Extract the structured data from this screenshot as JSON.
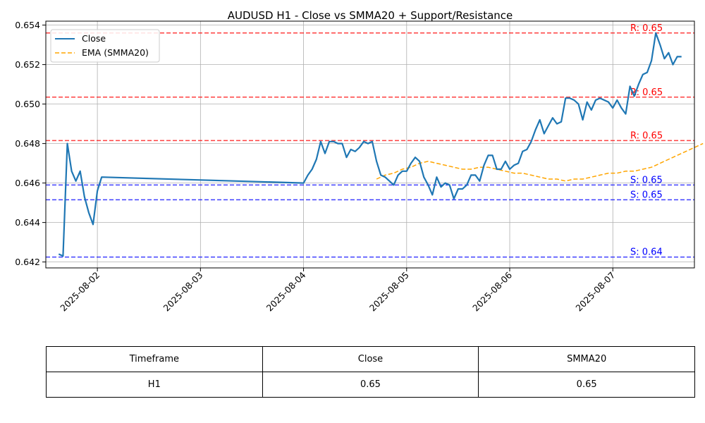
{
  "chart_data": {
    "type": "line",
    "title": "AUDUSD H1 - Close vs SMMA20 + Support/Resistance",
    "xlabel": "",
    "ylabel": "",
    "xlim": [
      "2025-08-01 12:00",
      "2025-08-07 19:00"
    ],
    "ylim": [
      0.6417,
      0.6542
    ],
    "x_ticks": [
      "2025-08-02",
      "2025-08-03",
      "2025-08-04",
      "2025-08-05",
      "2025-08-06",
      "2025-08-07"
    ],
    "y_ticks": [
      0.642,
      0.644,
      0.646,
      0.648,
      0.65,
      0.652,
      0.654
    ],
    "grid": true,
    "legend_position": "top-left",
    "colors": {
      "close": "#1f77b4",
      "smma": "#ffa500",
      "resistance": "#ff0000",
      "support": "#0000ff"
    },
    "series": [
      {
        "name": "Close",
        "style": "solid",
        "points": [
          [
            "2025-08-01 15:00",
            0.6424
          ],
          [
            "2025-08-01 16:00",
            0.6423
          ],
          [
            "2025-08-01 17:00",
            0.648
          ],
          [
            "2025-08-01 18:00",
            0.6466
          ],
          [
            "2025-08-01 19:00",
            0.6461
          ],
          [
            "2025-08-01 20:00",
            0.6466
          ],
          [
            "2025-08-01 21:00",
            0.6453
          ],
          [
            "2025-08-01 22:00",
            0.6445
          ],
          [
            "2025-08-01 23:00",
            0.6439
          ],
          [
            "2025-08-02 00:00",
            0.6456
          ],
          [
            "2025-08-02 01:00",
            0.6463
          ],
          [
            "2025-08-04 00:00",
            0.646
          ],
          [
            "2025-08-04 01:00",
            0.6464
          ],
          [
            "2025-08-04 02:00",
            0.6467
          ],
          [
            "2025-08-04 03:00",
            0.6472
          ],
          [
            "2025-08-04 04:00",
            0.6481
          ],
          [
            "2025-08-04 05:00",
            0.6475
          ],
          [
            "2025-08-04 06:00",
            0.6481
          ],
          [
            "2025-08-04 07:00",
            0.6481
          ],
          [
            "2025-08-04 08:00",
            0.648
          ],
          [
            "2025-08-04 09:00",
            0.648
          ],
          [
            "2025-08-04 10:00",
            0.6473
          ],
          [
            "2025-08-04 11:00",
            0.6477
          ],
          [
            "2025-08-04 12:00",
            0.6476
          ],
          [
            "2025-08-04 13:00",
            0.6478
          ],
          [
            "2025-08-04 14:00",
            0.6481
          ],
          [
            "2025-08-04 15:00",
            0.648
          ],
          [
            "2025-08-04 16:00",
            0.6481
          ],
          [
            "2025-08-04 17:00",
            0.6471
          ],
          [
            "2025-08-04 18:00",
            0.6464
          ],
          [
            "2025-08-04 19:00",
            0.6463
          ],
          [
            "2025-08-04 20:00",
            0.6461
          ],
          [
            "2025-08-04 21:00",
            0.6459
          ],
          [
            "2025-08-04 22:00",
            0.6464
          ],
          [
            "2025-08-04 23:00",
            0.6466
          ],
          [
            "2025-08-05 00:00",
            0.6466
          ],
          [
            "2025-08-05 01:00",
            0.647
          ],
          [
            "2025-08-05 02:00",
            0.6473
          ],
          [
            "2025-08-05 03:00",
            0.6471
          ],
          [
            "2025-08-05 04:00",
            0.6463
          ],
          [
            "2025-08-05 05:00",
            0.6459
          ],
          [
            "2025-08-05 06:00",
            0.6454
          ],
          [
            "2025-08-05 07:00",
            0.6463
          ],
          [
            "2025-08-05 08:00",
            0.6458
          ],
          [
            "2025-08-05 09:00",
            0.646
          ],
          [
            "2025-08-05 10:00",
            0.6459
          ],
          [
            "2025-08-05 11:00",
            0.6452
          ],
          [
            "2025-08-05 12:00",
            0.6457
          ],
          [
            "2025-08-05 13:00",
            0.6457
          ],
          [
            "2025-08-05 14:00",
            0.6459
          ],
          [
            "2025-08-05 15:00",
            0.6464
          ],
          [
            "2025-08-05 16:00",
            0.6464
          ],
          [
            "2025-08-05 17:00",
            0.6461
          ],
          [
            "2025-08-05 18:00",
            0.6469
          ],
          [
            "2025-08-05 19:00",
            0.6474
          ],
          [
            "2025-08-05 20:00",
            0.6474
          ],
          [
            "2025-08-05 21:00",
            0.6467
          ],
          [
            "2025-08-05 22:00",
            0.6467
          ],
          [
            "2025-08-05 23:00",
            0.6471
          ],
          [
            "2025-08-06 00:00",
            0.6467
          ],
          [
            "2025-08-06 01:00",
            0.6469
          ],
          [
            "2025-08-06 02:00",
            0.647
          ],
          [
            "2025-08-06 03:00",
            0.6476
          ],
          [
            "2025-08-06 04:00",
            0.6477
          ],
          [
            "2025-08-06 05:00",
            0.6481
          ],
          [
            "2025-08-06 06:00",
            0.6487
          ],
          [
            "2025-08-06 07:00",
            0.6492
          ],
          [
            "2025-08-06 08:00",
            0.6485
          ],
          [
            "2025-08-06 09:00",
            0.6489
          ],
          [
            "2025-08-06 10:00",
            0.6493
          ],
          [
            "2025-08-06 11:00",
            0.649
          ],
          [
            "2025-08-06 12:00",
            0.6491
          ],
          [
            "2025-08-06 13:00",
            0.6503
          ],
          [
            "2025-08-06 14:00",
            0.6503
          ],
          [
            "2025-08-06 15:00",
            0.6502
          ],
          [
            "2025-08-06 16:00",
            0.65
          ],
          [
            "2025-08-06 17:00",
            0.6492
          ],
          [
            "2025-08-06 18:00",
            0.6501
          ],
          [
            "2025-08-06 19:00",
            0.6497
          ],
          [
            "2025-08-06 20:00",
            0.6502
          ],
          [
            "2025-08-06 21:00",
            0.6503
          ],
          [
            "2025-08-06 22:00",
            0.6502
          ],
          [
            "2025-08-06 23:00",
            0.6501
          ],
          [
            "2025-08-07 00:00",
            0.6498
          ],
          [
            "2025-08-07 01:00",
            0.6502
          ],
          [
            "2025-08-07 02:00",
            0.6498
          ],
          [
            "2025-08-07 03:00",
            0.6495
          ],
          [
            "2025-08-07 04:00",
            0.6509
          ],
          [
            "2025-08-07 05:00",
            0.6504
          ],
          [
            "2025-08-07 06:00",
            0.651
          ],
          [
            "2025-08-07 07:00",
            0.6515
          ],
          [
            "2025-08-07 08:00",
            0.6516
          ],
          [
            "2025-08-07 09:00",
            0.6522
          ],
          [
            "2025-08-07 10:00",
            0.6536
          ],
          [
            "2025-08-07 11:00",
            0.653
          ],
          [
            "2025-08-07 12:00",
            0.6523
          ],
          [
            "2025-08-07 13:00",
            0.6526
          ],
          [
            "2025-08-07 14:00",
            0.652
          ],
          [
            "2025-08-07 15:00",
            0.6524
          ],
          [
            "2025-08-07 16:00",
            0.6524
          ]
        ]
      },
      {
        "name": "EMA (SMMA20)",
        "style": "dashed",
        "points": [
          [
            "2025-08-04 17:00",
            0.6462
          ],
          [
            "2025-08-04 19:00",
            0.6464
          ],
          [
            "2025-08-04 21:00",
            0.6465
          ],
          [
            "2025-08-04 23:00",
            0.6467
          ],
          [
            "2025-08-05 01:00",
            0.6468
          ],
          [
            "2025-08-05 03:00",
            0.647
          ],
          [
            "2025-08-05 05:00",
            0.6471
          ],
          [
            "2025-08-05 07:00",
            0.647
          ],
          [
            "2025-08-05 09:00",
            0.6469
          ],
          [
            "2025-08-05 11:00",
            0.6468
          ],
          [
            "2025-08-05 13:00",
            0.6467
          ],
          [
            "2025-08-05 15:00",
            0.6467
          ],
          [
            "2025-08-05 17:00",
            0.6468
          ],
          [
            "2025-08-05 19:00",
            0.6468
          ],
          [
            "2025-08-05 21:00",
            0.6467
          ],
          [
            "2025-08-05 23:00",
            0.6466
          ],
          [
            "2025-08-06 01:00",
            0.6465
          ],
          [
            "2025-08-06 03:00",
            0.6465
          ],
          [
            "2025-08-06 05:00",
            0.6464
          ],
          [
            "2025-08-06 07:00",
            0.6463
          ],
          [
            "2025-08-06 09:00",
            0.6462
          ],
          [
            "2025-08-06 11:00",
            0.6462
          ],
          [
            "2025-08-06 13:00",
            0.6461
          ],
          [
            "2025-08-06 15:00",
            0.6462
          ],
          [
            "2025-08-06 17:00",
            0.6462
          ],
          [
            "2025-08-06 19:00",
            0.6463
          ],
          [
            "2025-08-06 21:00",
            0.6464
          ],
          [
            "2025-08-06 23:00",
            0.6465
          ],
          [
            "2025-08-07 01:00",
            0.6465
          ],
          [
            "2025-08-07 03:00",
            0.6466
          ],
          [
            "2025-08-07 05:00",
            0.6466
          ],
          [
            "2025-08-07 07:00",
            0.6467
          ],
          [
            "2025-08-07 09:00",
            0.6468
          ],
          [
            "2025-08-07 11:00",
            0.647
          ],
          [
            "2025-08-07 13:00",
            0.6472
          ],
          [
            "2025-08-07 15:00",
            0.6474
          ],
          [
            "2025-08-07 17:00",
            0.6476
          ],
          [
            "2025-08-07 19:00",
            0.6478
          ],
          [
            "2025-08-07 21:00",
            0.648
          ]
        ]
      }
    ],
    "resistance_levels": [
      {
        "value": 0.6536,
        "label": "R: 0.65"
      },
      {
        "value": 0.65035,
        "label": "R: 0.65"
      },
      {
        "value": 0.64815,
        "label": "R: 0.65"
      }
    ],
    "support_levels": [
      {
        "value": 0.6459,
        "label": "S: 0.65"
      },
      {
        "value": 0.64515,
        "label": "S: 0.65"
      },
      {
        "value": 0.64225,
        "label": "S: 0.64"
      }
    ]
  },
  "table": {
    "headers": [
      "Timeframe",
      "Close",
      "SMMA20"
    ],
    "rows": [
      [
        "H1",
        "0.65",
        "0.65"
      ]
    ]
  }
}
